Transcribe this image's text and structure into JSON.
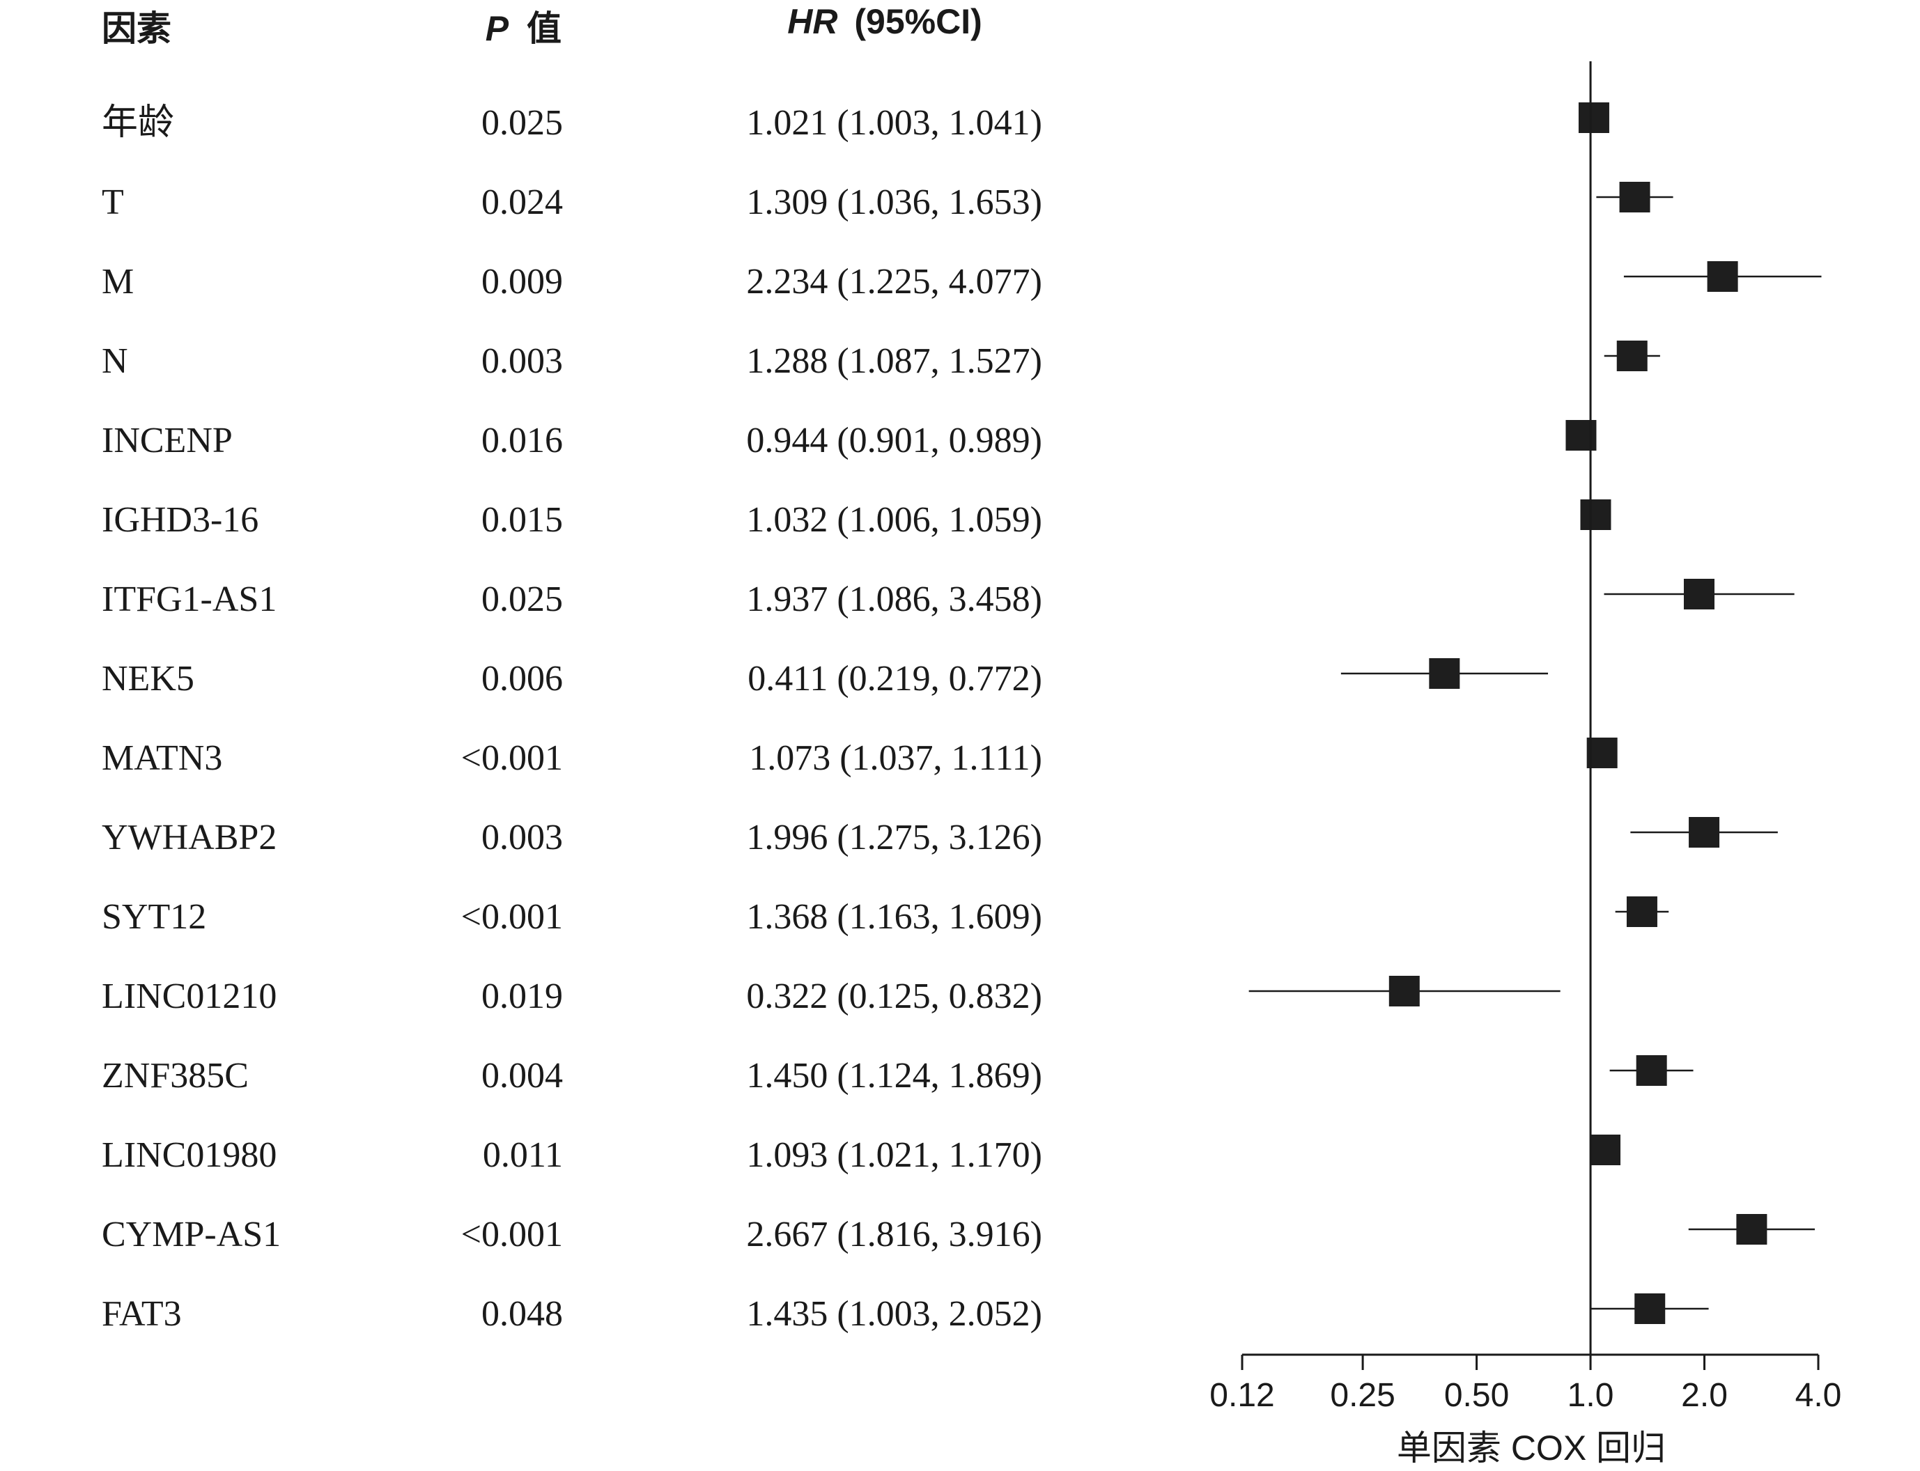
{
  "headers": {
    "factor": "因素",
    "p_symbol": "P",
    "p_suffix": "值",
    "hr_symbol": "HR",
    "hr_suffix": "(95%CI)"
  },
  "chart_data": {
    "type": "forest",
    "xlabel": "单因素 COX 回归",
    "x_scale": "log2",
    "xlim": [
      0.12,
      4.0
    ],
    "x_ticks": [
      0.12,
      0.25,
      0.5,
      1.0,
      2.0,
      4.0
    ],
    "x_tick_labels": [
      "0.12",
      "0.25",
      "0.50",
      "1.0",
      "2.0",
      "4.0"
    ],
    "reference_line": 1.0,
    "rows": [
      {
        "factor": "年龄",
        "p": "0.025",
        "hr_text": "1.021 (1.003, 1.041)",
        "hr": 1.021,
        "lo": 1.003,
        "hi": 1.041
      },
      {
        "factor": "T",
        "p": "0.024",
        "hr_text": "1.309 (1.036, 1.653)",
        "hr": 1.309,
        "lo": 1.036,
        "hi": 1.653
      },
      {
        "factor": "M",
        "p": "0.009",
        "hr_text": "2.234 (1.225, 4.077)",
        "hr": 2.234,
        "lo": 1.225,
        "hi": 4.077
      },
      {
        "factor": "N",
        "p": "0.003",
        "hr_text": "1.288 (1.087, 1.527)",
        "hr": 1.288,
        "lo": 1.087,
        "hi": 1.527
      },
      {
        "factor": "INCENP",
        "p": "0.016",
        "hr_text": "0.944 (0.901, 0.989)",
        "hr": 0.944,
        "lo": 0.901,
        "hi": 0.989
      },
      {
        "factor": "IGHD3-16",
        "p": "0.015",
        "hr_text": "1.032 (1.006, 1.059)",
        "hr": 1.032,
        "lo": 1.006,
        "hi": 1.059
      },
      {
        "factor": "ITFG1-AS1",
        "p": "0.025",
        "hr_text": "1.937 (1.086, 3.458)",
        "hr": 1.937,
        "lo": 1.086,
        "hi": 3.458
      },
      {
        "factor": "NEK5",
        "p": "0.006",
        "hr_text": "0.411 (0.219, 0.772)",
        "hr": 0.411,
        "lo": 0.219,
        "hi": 0.772
      },
      {
        "factor": "MATN3",
        "p": "<0.001",
        "hr_text": "1.073 (1.037, 1.111)",
        "hr": 1.073,
        "lo": 1.037,
        "hi": 1.111
      },
      {
        "factor": "YWHABP2",
        "p": "0.003",
        "hr_text": "1.996 (1.275, 3.126)",
        "hr": 1.996,
        "lo": 1.275,
        "hi": 3.126
      },
      {
        "factor": "SYT12",
        "p": "<0.001",
        "hr_text": "1.368 (1.163, 1.609)",
        "hr": 1.368,
        "lo": 1.163,
        "hi": 1.609
      },
      {
        "factor": "LINC01210",
        "p": "0.019",
        "hr_text": "0.322 (0.125, 0.832)",
        "hr": 0.322,
        "lo": 0.125,
        "hi": 0.832
      },
      {
        "factor": "ZNF385C",
        "p": "0.004",
        "hr_text": "1.450 (1.124, 1.869)",
        "hr": 1.45,
        "lo": 1.124,
        "hi": 1.869
      },
      {
        "factor": "LINC01980",
        "p": "0.011",
        "hr_text": "1.093 (1.021, 1.170)",
        "hr": 1.093,
        "lo": 1.021,
        "hi": 1.17
      },
      {
        "factor": "CYMP-AS1",
        "p": "<0.001",
        "hr_text": "2.667 (1.816, 3.916)",
        "hr": 2.667,
        "lo": 1.816,
        "hi": 3.916
      },
      {
        "factor": "FAT3",
        "p": "0.048",
        "hr_text": "1.435 (1.003, 2.052)",
        "hr": 1.435,
        "lo": 1.003,
        "hi": 2.052
      }
    ]
  }
}
